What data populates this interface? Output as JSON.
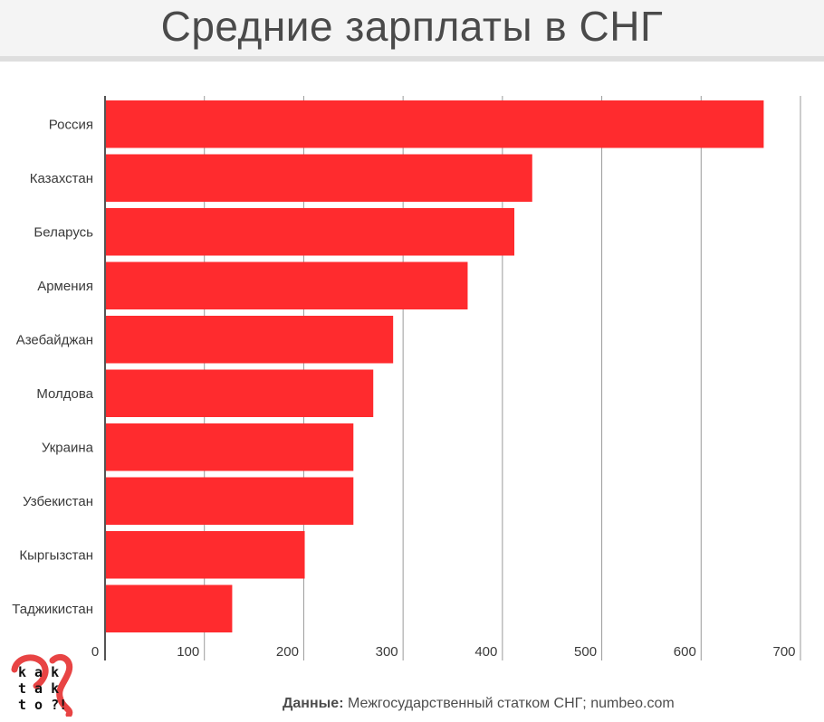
{
  "header": {
    "title": "Средние зарплаты в СНГ"
  },
  "footer": {
    "source_label": "Данные:",
    "source_text": "Межгосударственный статком СНГ; numbeo.com"
  },
  "logo": {
    "lines": [
      "k a k",
      "t a k",
      "t o ?!"
    ],
    "color": "#e53030"
  },
  "colors": {
    "bar": "#ff2b2e",
    "grid": "#9a9a9a",
    "axis": "#555555",
    "text": "#3a3a3a"
  },
  "chart_data": {
    "type": "bar",
    "orientation": "horizontal",
    "title": "Средние зарплаты в СНГ",
    "categories": [
      "Россия",
      "Казахстан",
      "Беларусь",
      "Армения",
      "Азебайджан",
      "Молдова",
      "Украина",
      "Узбекистан",
      "Кыргызстан",
      "Таджикистан"
    ],
    "values": [
      663,
      430,
      412,
      365,
      290,
      270,
      250,
      250,
      201,
      128
    ],
    "xlim": [
      0,
      700
    ],
    "xticks": [
      0,
      100,
      200,
      300,
      400,
      500,
      600,
      700
    ],
    "xlabel": "",
    "ylabel": "",
    "grid": true,
    "legend": "none"
  }
}
